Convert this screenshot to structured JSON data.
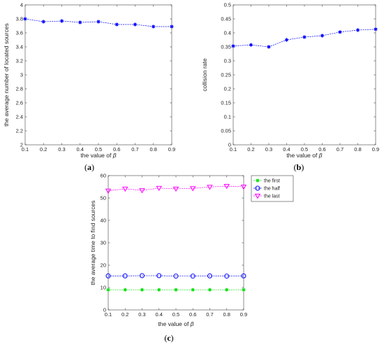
{
  "chart_data": [
    {
      "type": "line",
      "panel_label": "(a)",
      "xlabel_prefix": "the value of ",
      "xlabel_symbol": "β",
      "ylabel": "the average number of located sources",
      "x": [
        0.1,
        0.2,
        0.3,
        0.4,
        0.5,
        0.6,
        0.7,
        0.8,
        0.9
      ],
      "xlim": [
        0.1,
        0.9
      ],
      "ylim": [
        2,
        4
      ],
      "x_ticks": [
        "0.1",
        "0.2",
        "0.3",
        "0.4",
        "0.5",
        "0.6",
        "0.7",
        "0.8",
        "0.9"
      ],
      "y_ticks": [
        "2",
        "2.2",
        "2.4",
        "2.6",
        "2.8",
        "3",
        "3.2",
        "3.4",
        "3.6",
        "3.8",
        "4"
      ],
      "series": [
        {
          "values": [
            3.8,
            3.76,
            3.77,
            3.75,
            3.76,
            3.72,
            3.72,
            3.69,
            3.69
          ],
          "color": "#0000ff",
          "marker": "star"
        }
      ]
    },
    {
      "type": "line",
      "panel_label": "(b)",
      "xlabel_prefix": "the value of ",
      "xlabel_symbol": "β",
      "ylabel": "collision rate",
      "x": [
        0.1,
        0.2,
        0.3,
        0.4,
        0.5,
        0.6,
        0.7,
        0.8,
        0.9
      ],
      "xlim": [
        0.1,
        0.9
      ],
      "ylim": [
        0,
        0.5
      ],
      "x_ticks": [
        "0.1",
        "0.2",
        "0.3",
        "0.4",
        "0.5",
        "0.6",
        "0.7",
        "0.8",
        "0.9"
      ],
      "y_ticks": [
        "0",
        "0.05",
        "0.1",
        "0.15",
        "0.2",
        "0.25",
        "0.3",
        "0.35",
        "0.4",
        "0.45",
        "0.5"
      ],
      "series": [
        {
          "values": [
            0.353,
            0.357,
            0.35,
            0.375,
            0.385,
            0.39,
            0.403,
            0.41,
            0.413
          ],
          "color": "#0000ff",
          "marker": "star"
        }
      ]
    },
    {
      "type": "line",
      "panel_label": "(c)",
      "xlabel_prefix": "the value of ",
      "xlabel_symbol": "β",
      "ylabel": "the average time to find sources",
      "x": [
        0.1,
        0.2,
        0.3,
        0.4,
        0.5,
        0.6,
        0.7,
        0.8,
        0.9
      ],
      "xlim": [
        0.1,
        0.9
      ],
      "ylim": [
        0,
        60
      ],
      "x_ticks": [
        "0.1",
        "0.2",
        "0.3",
        "0.4",
        "0.5",
        "0.6",
        "0.7",
        "0.8",
        "0.9"
      ],
      "y_ticks": [
        "0",
        "10",
        "20",
        "30",
        "40",
        "50",
        "60"
      ],
      "legend_position": "outside-right-top",
      "series": [
        {
          "name": "the first",
          "values": [
            9,
            9,
            9,
            9,
            9,
            9,
            9,
            9,
            9
          ],
          "color": "#00dd00",
          "marker": "star"
        },
        {
          "name": "the half",
          "values": [
            15.2,
            15.2,
            15.3,
            15.3,
            15.1,
            15.1,
            15.2,
            15.1,
            15.2
          ],
          "color": "#0000ff",
          "marker": "circle"
        },
        {
          "name": "the last",
          "values": [
            53.2,
            54.1,
            53.4,
            54.4,
            54.1,
            54.3,
            54.9,
            55.3,
            55.0
          ],
          "color": "#ff00ff",
          "marker": "triangle-down"
        }
      ]
    }
  ]
}
